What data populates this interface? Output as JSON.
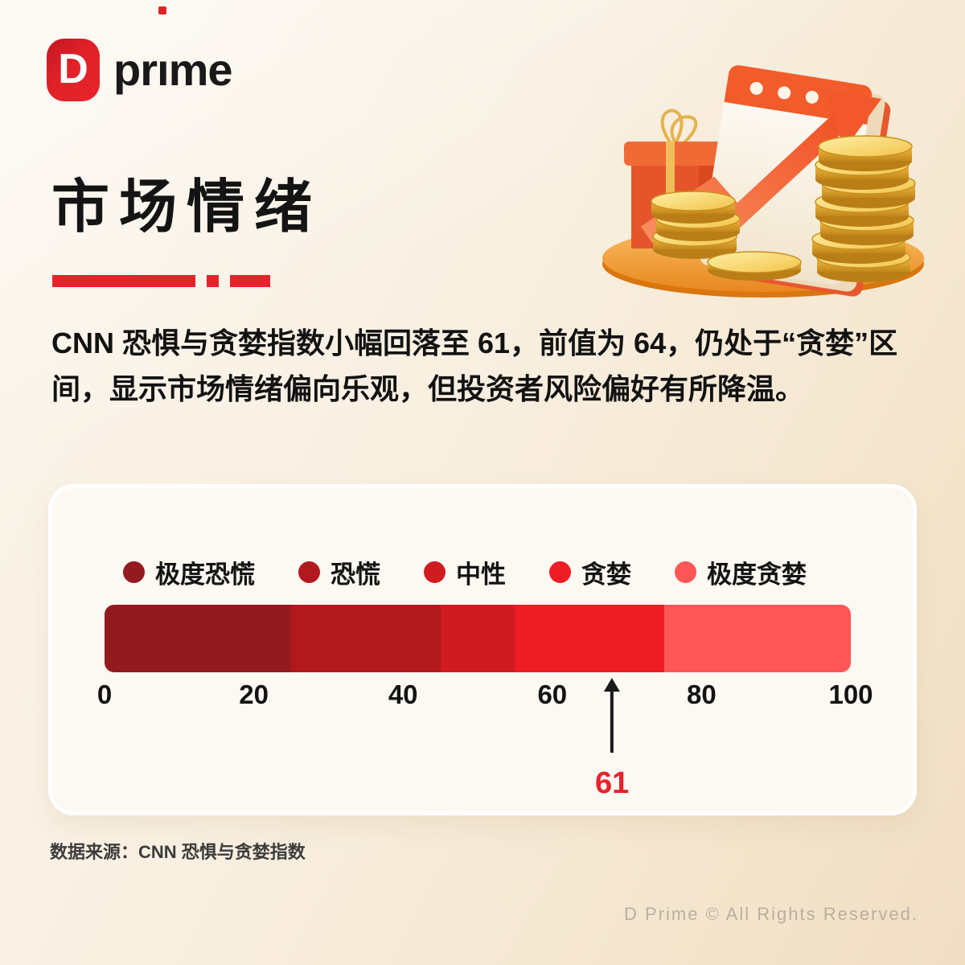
{
  "logo": {
    "mark_letter": "D",
    "text_pre": "pr",
    "text_i": "ı",
    "text_post": "me"
  },
  "header": {
    "title": "市场情绪"
  },
  "summary": "CNN 恐惧与贪婪指数小幅回落至 61，前值为 64，仍处于“贪婪”区间，显示市场情绪偏向乐观，但投资者风险偏好有所降温。",
  "chart_data": {
    "type": "bar",
    "subtype": "segmented-gauge",
    "xlim": [
      0,
      100
    ],
    "axis_ticks": [
      0,
      20,
      40,
      60,
      80,
      100
    ],
    "legend_position": "top",
    "segments": [
      {
        "label": "极度恐慌",
        "from": 0,
        "to": 25,
        "color": "#931A1E"
      },
      {
        "label": "恐慌",
        "from": 25,
        "to": 45,
        "color": "#B2191E"
      },
      {
        "label": "中性",
        "from": 45,
        "to": 55,
        "color": "#D01C21"
      },
      {
        "label": "贪婪",
        "from": 55,
        "to": 75,
        "color": "#EE1C24"
      },
      {
        "label": "极度贪婪",
        "from": 75,
        "to": 100,
        "color": "#FF5757"
      }
    ],
    "marker": {
      "value": 61,
      "label": "61"
    }
  },
  "footer": {
    "source": "数据来源：CNN 恐惧与贪婪指数",
    "copyright": "D Prime © All Rights Reserved."
  },
  "colors": {
    "accent_red": "#E8212A",
    "logo_red": "#E02128",
    "marker_label_red": "#E8212A",
    "card_bg": "#FCF8F2",
    "page_bg": "#F8EFE2",
    "text_dark": "#141414",
    "copyright_gray": "#B9AEA0"
  },
  "illustration": {
    "name": "calendar-coins-growth-arrow"
  }
}
